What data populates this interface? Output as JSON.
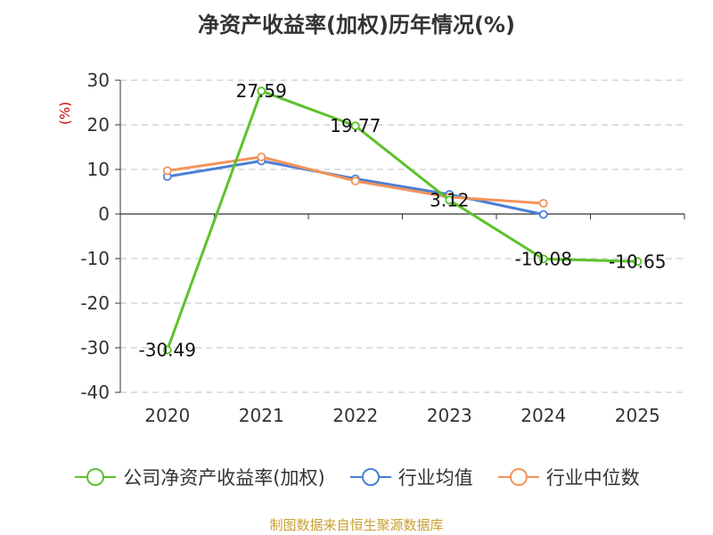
{
  "title": "净资产收益率(加权)历年情况(%)",
  "unit_label": "(%)",
  "source": "制图数据来自恒生聚源数据库",
  "chart_data": {
    "type": "line",
    "title": "净资产收益率(加权)历年情况(%)",
    "xlabel": "",
    "ylabel": "(%)",
    "categories": [
      "2020",
      "2021",
      "2022",
      "2023",
      "2024",
      "2025"
    ],
    "ylim": [
      -40,
      30
    ],
    "yticks": [
      30,
      20,
      10,
      0,
      -10,
      -20,
      -30,
      -40
    ],
    "ytick_labels": [
      "30",
      "20",
      "10",
      "0",
      "-10",
      "-20",
      "-30",
      "-40"
    ],
    "grid": true,
    "legend_position": "bottom",
    "series": [
      {
        "name": "公司净资产收益率(加权)",
        "color": "#5cc22c",
        "values": [
          -30.49,
          27.59,
          19.77,
          3.12,
          -10.08,
          -10.65
        ],
        "labels": [
          "-30.49",
          "27.59",
          "19.77",
          "3.12",
          "-10.08",
          "-10.65"
        ]
      },
      {
        "name": "行业均值",
        "color": "#4a7fd8",
        "values": [
          8.4,
          11.9,
          7.9,
          4.4,
          -0.1,
          null
        ]
      },
      {
        "name": "行业中位数",
        "color": "#f4935c",
        "values": [
          9.7,
          12.8,
          7.4,
          3.8,
          2.4,
          null
        ]
      }
    ]
  }
}
